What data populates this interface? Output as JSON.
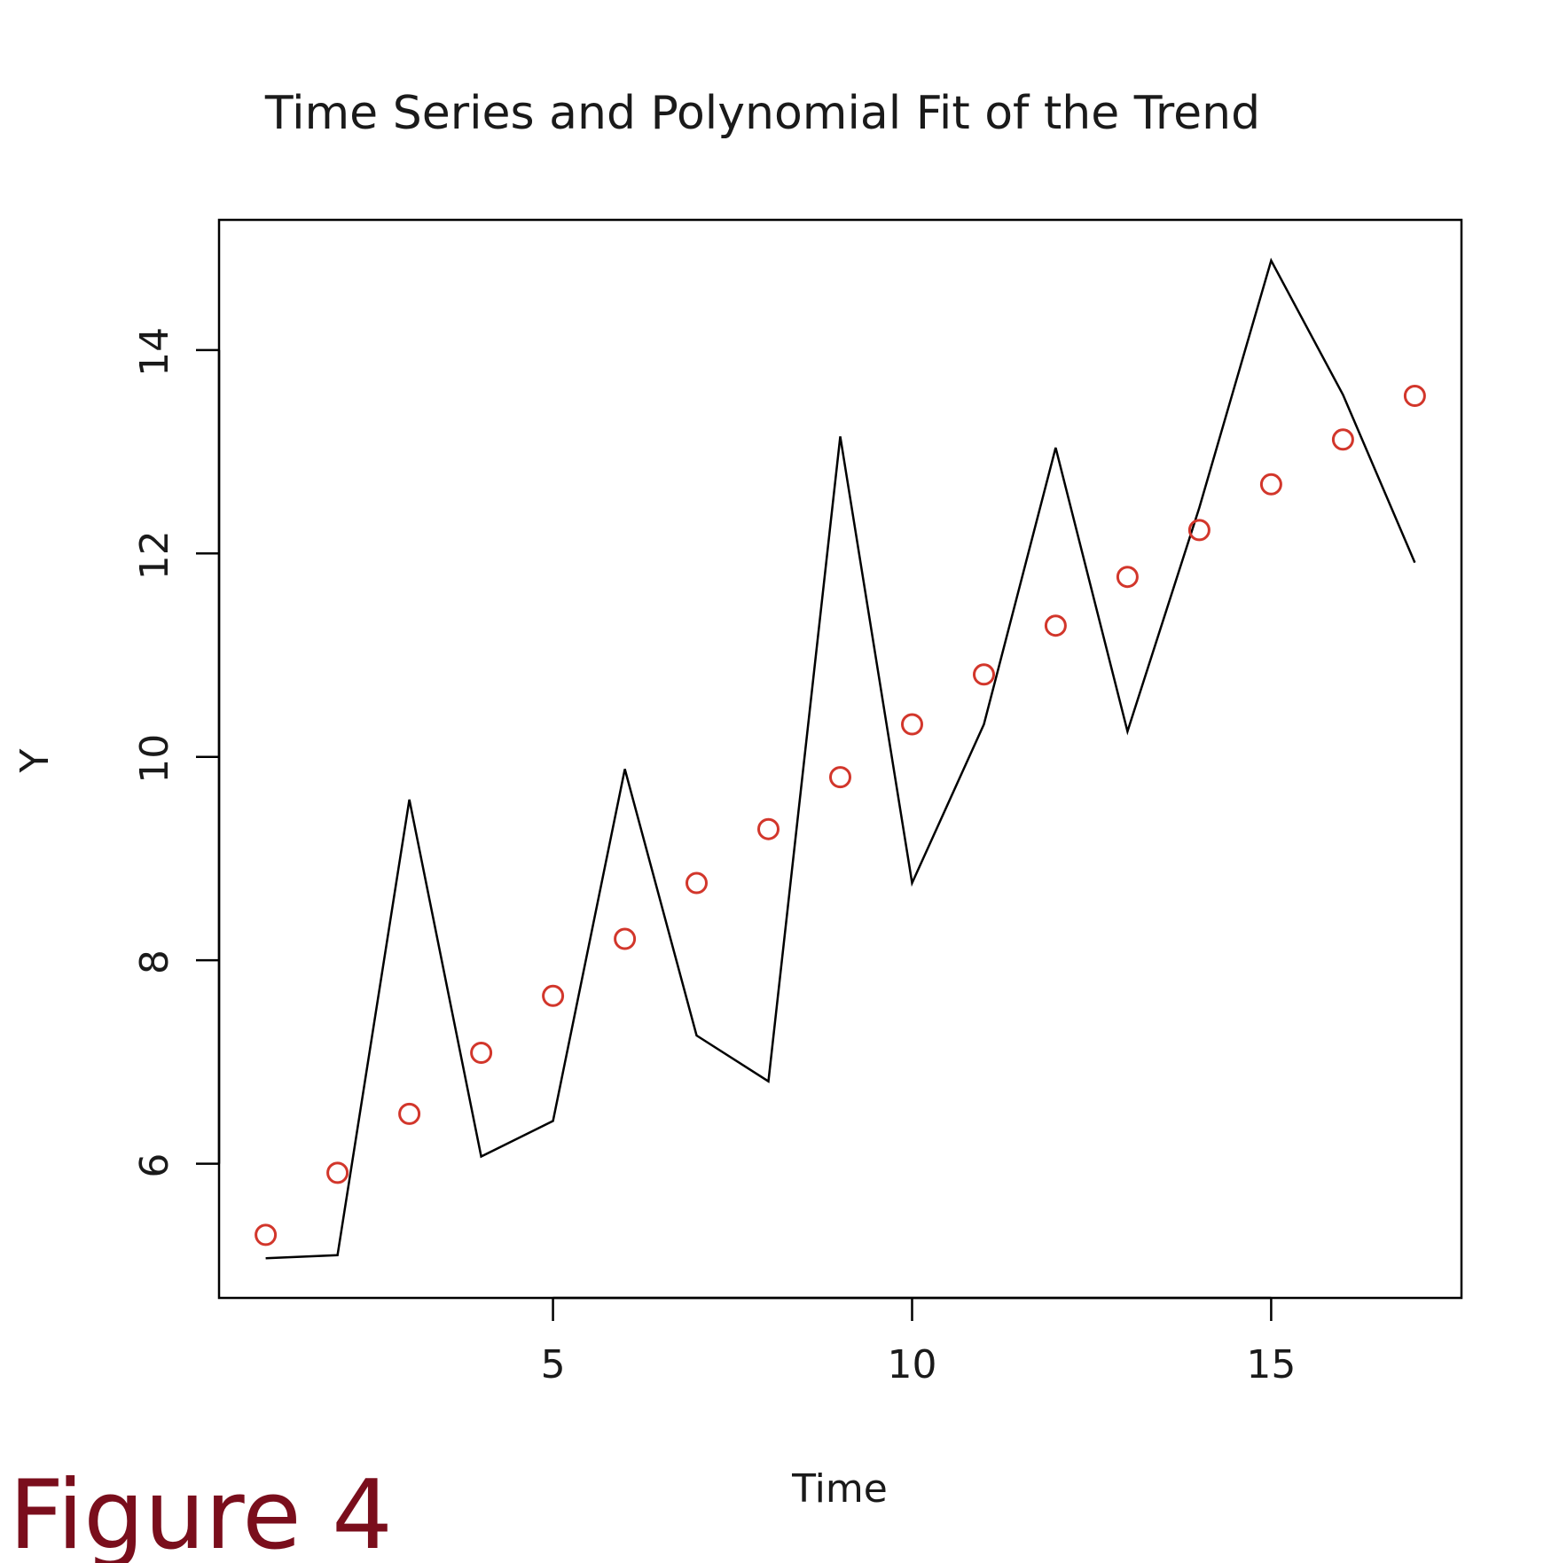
{
  "caption": "Figure 4",
  "colors": {
    "series_line": "#000000",
    "fitted_points": "#d2362b",
    "caption": "#7a0e1c"
  },
  "chart_data": {
    "type": "line",
    "title": "Time Series and Polynomial Fit of the Trend",
    "xlabel": "Time",
    "ylabel": "Y",
    "xlim": [
      0.35,
      17.65
    ],
    "ylim": [
      4.68,
      15.28
    ],
    "x_ticks": [
      5,
      10,
      15
    ],
    "y_ticks": [
      6,
      8,
      10,
      12,
      14
    ],
    "grid": false,
    "legend": "none",
    "x": [
      1,
      2,
      3,
      4,
      5,
      6,
      7,
      8,
      9,
      10,
      11,
      12,
      13,
      14,
      15,
      16,
      17
    ],
    "series": [
      {
        "style": "line",
        "values": [
          5.07,
          5.1,
          9.58,
          6.07,
          6.42,
          9.88,
          7.26,
          6.81,
          13.15,
          8.76,
          10.32,
          13.04,
          10.25,
          12.45,
          14.88,
          13.56,
          11.91
        ]
      },
      {
        "style": "points",
        "values": [
          5.3,
          5.91,
          6.49,
          7.09,
          7.65,
          8.21,
          8.76,
          9.29,
          9.8,
          10.32,
          10.81,
          11.29,
          11.77,
          12.23,
          12.68,
          13.12,
          13.55
        ]
      }
    ]
  }
}
